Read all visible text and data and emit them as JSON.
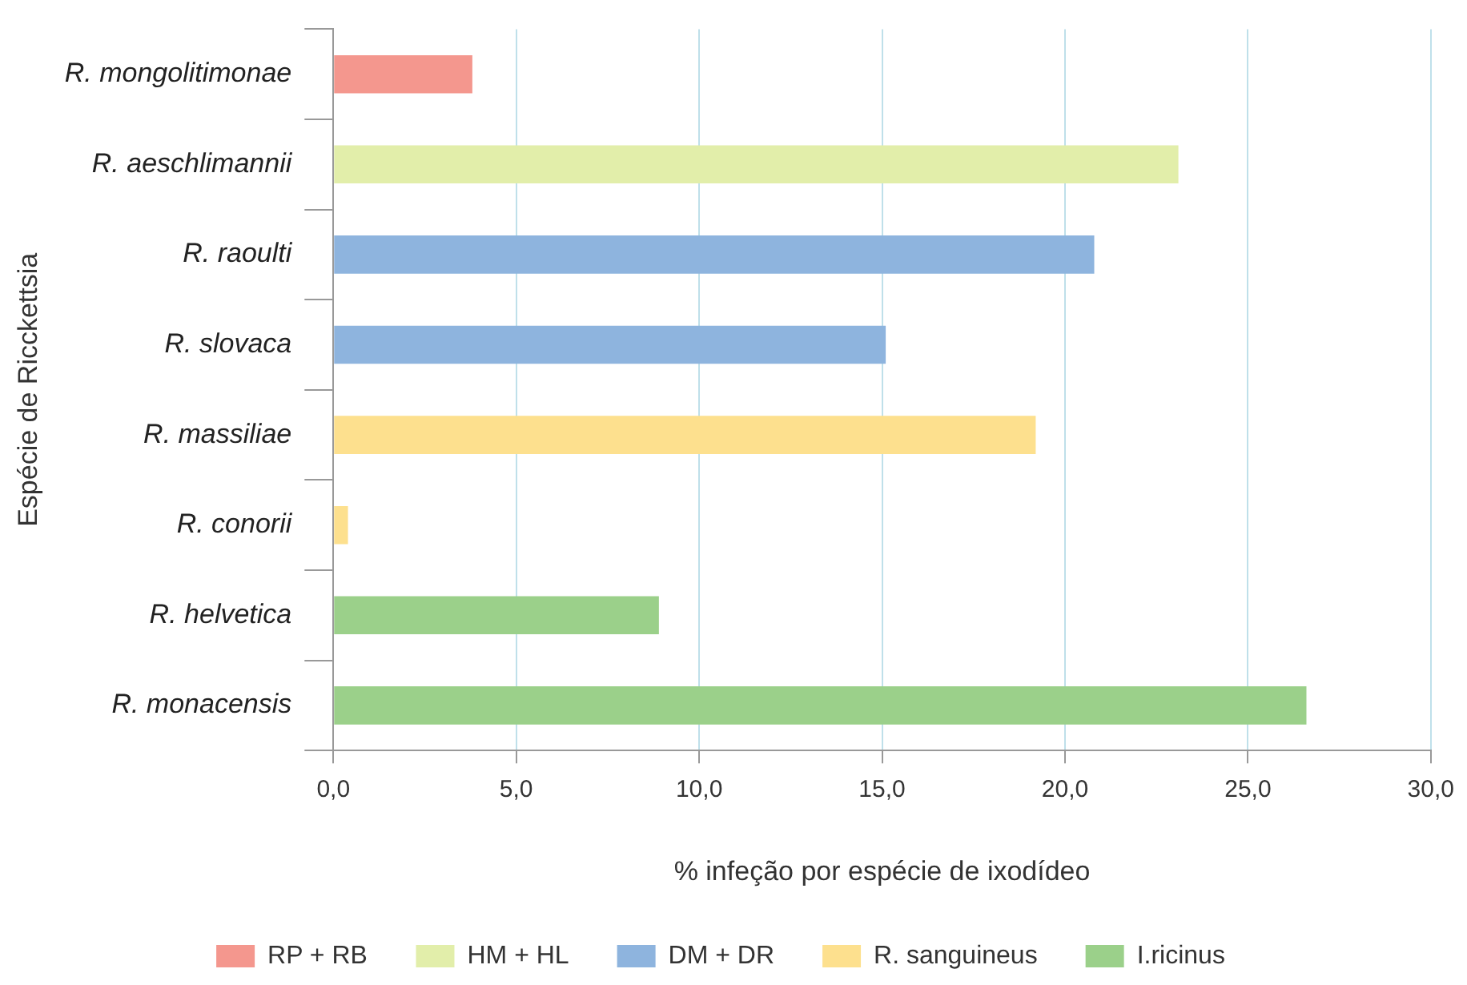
{
  "chart_data": {
    "type": "bar",
    "orientation": "horizontal",
    "xlabel": "% infeção por espécie de ixodídeo",
    "ylabel": "Espécie de Ricckettsia",
    "categories": [
      "R. mongolitimonae",
      "R. aeschlimannii",
      "R. raoulti",
      "R. slovaca",
      "R. massiliae",
      "R. conorii",
      "R. helvetica",
      "R. monacensis"
    ],
    "series": [
      {
        "name": "RP + RB",
        "color": "#f4978e",
        "values": [
          3.8,
          null,
          null,
          null,
          null,
          null,
          null,
          null
        ]
      },
      {
        "name": "HM + HL",
        "color": "#e2eeaa",
        "values": [
          null,
          23.1,
          null,
          null,
          null,
          null,
          null,
          null
        ]
      },
      {
        "name": "DM + DR",
        "color": "#8eb4de",
        "values": [
          null,
          null,
          20.8,
          15.1,
          null,
          null,
          null,
          null
        ]
      },
      {
        "name": "R. sanguineus",
        "color": "#fde08e",
        "values": [
          null,
          null,
          null,
          null,
          19.2,
          0.4,
          null,
          null
        ]
      },
      {
        "name": "I.ricinus",
        "color": "#9bd08a",
        "values": [
          null,
          null,
          null,
          null,
          null,
          null,
          8.9,
          26.6
        ]
      }
    ],
    "xlim": [
      0,
      30
    ],
    "xticks": [
      {
        "value": 0,
        "label": "0,0"
      },
      {
        "value": 5,
        "label": "5,0"
      },
      {
        "value": 10,
        "label": "10,0"
      },
      {
        "value": 15,
        "label": "15,0"
      },
      {
        "value": 20,
        "label": "20,0"
      },
      {
        "value": 25,
        "label": "25,0"
      },
      {
        "value": 30,
        "label": "30,0"
      }
    ],
    "grid": "x",
    "legend": "bottom"
  }
}
